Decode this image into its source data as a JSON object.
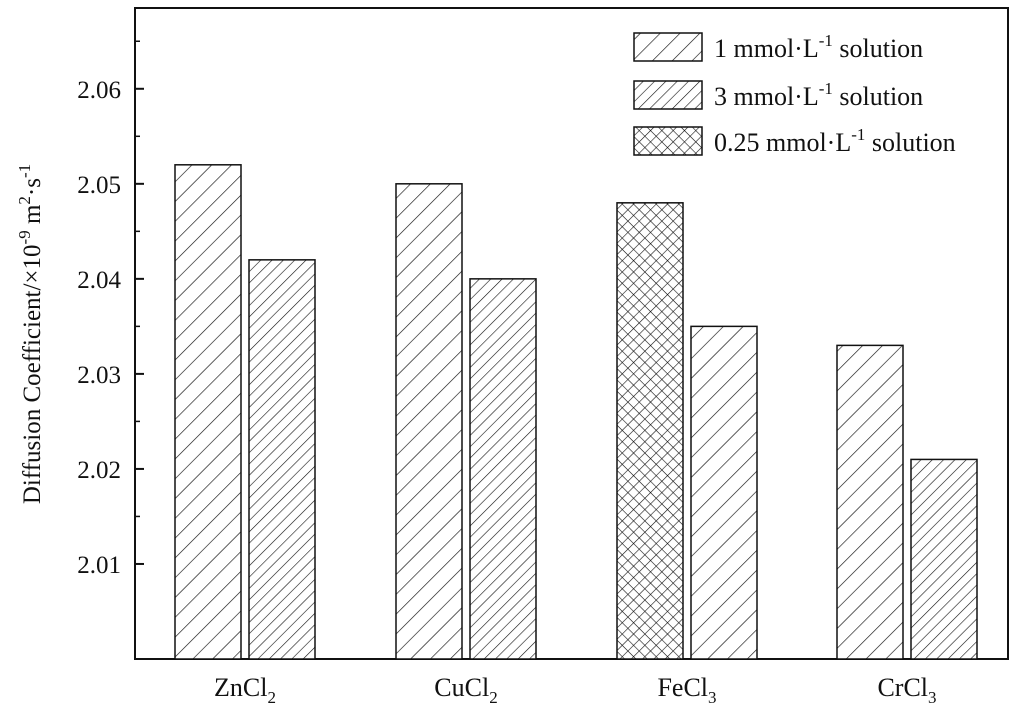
{
  "chart_data": {
    "type": "bar",
    "title": "",
    "xlabel": "",
    "ylabel": {
      "base": "Diffusion Coefficient/×10",
      "exp1": "-9",
      "mid": " m",
      "exp2": "2",
      "mid2": "·s",
      "exp3": "-1"
    },
    "ylim": [
      2.0,
      2.0685
    ],
    "yticks": [
      2.01,
      2.02,
      2.03,
      2.04,
      2.05,
      2.06
    ],
    "ytick_labels": [
      "2.01",
      "2.02",
      "2.03",
      "2.04",
      "2.05",
      "2.06"
    ],
    "categories": [
      {
        "base": "ZnCl",
        "sub": "2"
      },
      {
        "base": "CuCl",
        "sub": "2"
      },
      {
        "base": "FeCl",
        "sub": "3"
      },
      {
        "base": "CrCl",
        "sub": "3"
      }
    ],
    "legend": [
      {
        "prefix": "1 mmol·L",
        "sup": "-1",
        "suffix": " solution",
        "pattern": "hatch-wide"
      },
      {
        "prefix": "3 mmol·L",
        "sup": "-1",
        "suffix": " solution",
        "pattern": "hatch-dense"
      },
      {
        "prefix": "0.25 mmol·L",
        "sup": "-1",
        "suffix": " solution",
        "pattern": "crosshatch"
      }
    ],
    "legend_position": "top-right",
    "bars": [
      {
        "category": 0,
        "slot": 0,
        "value": 2.052,
        "pattern": "hatch-wide"
      },
      {
        "category": 0,
        "slot": 1,
        "value": 2.042,
        "pattern": "hatch-dense"
      },
      {
        "category": 1,
        "slot": 0,
        "value": 2.05,
        "pattern": "hatch-wide"
      },
      {
        "category": 1,
        "slot": 1,
        "value": 2.04,
        "pattern": "hatch-dense"
      },
      {
        "category": 2,
        "slot": 0,
        "value": 2.048,
        "pattern": "crosshatch"
      },
      {
        "category": 2,
        "slot": 1,
        "value": 2.035,
        "pattern": "hatch-wide"
      },
      {
        "category": 3,
        "slot": 0,
        "value": 2.033,
        "pattern": "hatch-wide"
      },
      {
        "category": 3,
        "slot": 1,
        "value": 2.021,
        "pattern": "hatch-dense"
      }
    ],
    "colors": {
      "line": "#111111",
      "background": "#ffffff"
    }
  }
}
